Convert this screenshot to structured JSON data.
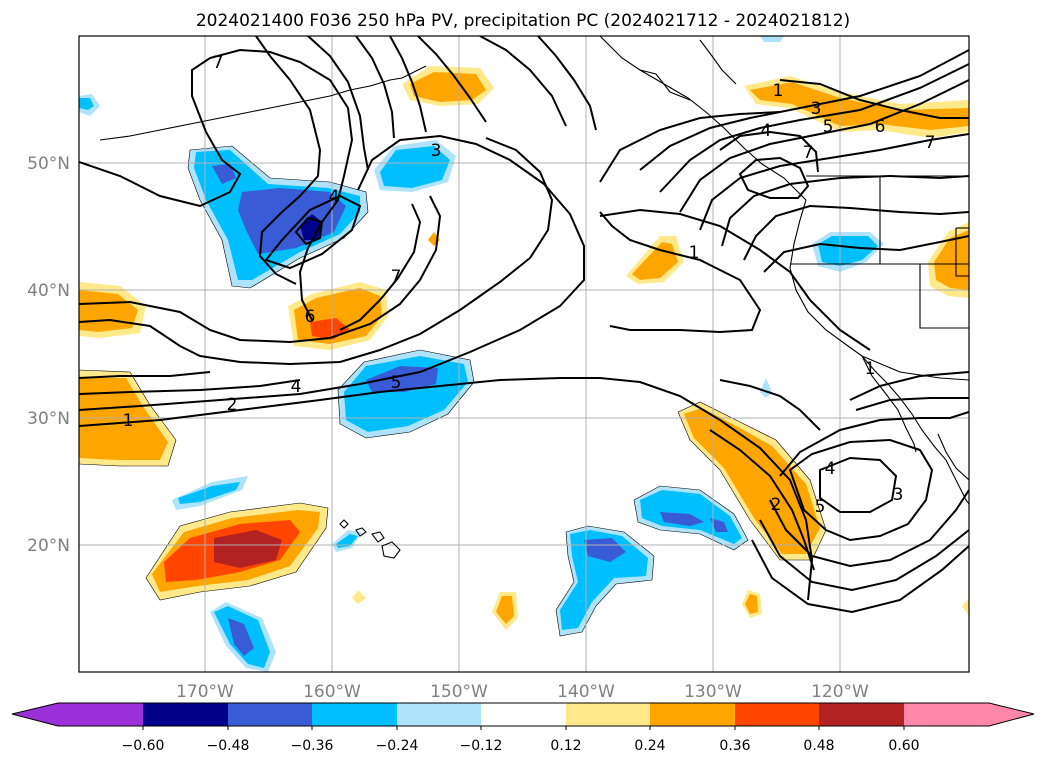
{
  "title": "2024021400 F036 250 hPa PV, precipitation PC (2024021712 - 2024021812)",
  "colors": {
    "neg_extra": "#9b30d9",
    "neg_060": "#00008b",
    "neg_048": "#3a5bd6",
    "neg_036": "#00bfff",
    "neg_024": "#aee3fb",
    "neutral": "#ffffff",
    "pos_012": "#ffe98a",
    "pos_024": "#ffa500",
    "pos_036": "#ff4500",
    "pos_048": "#b22222",
    "pos_extra": "#ff88aa"
  },
  "lat_labels": [
    "50°N",
    "40°N",
    "30°N",
    "20°N"
  ],
  "lon_labels": [
    "170°W",
    "160°W",
    "150°W",
    "140°W",
    "130°W",
    "120°W"
  ],
  "colorbar_ticks": [
    "−0.60",
    "−0.48",
    "−0.36",
    "−0.24",
    "−0.12",
    "0.12",
    "0.24",
    "0.36",
    "0.48",
    "0.60"
  ],
  "contour_labels": [
    "7",
    "4",
    "3",
    "7",
    "6",
    "5",
    "4",
    "2",
    "1",
    "1",
    "3",
    "4",
    "5",
    "6",
    "7",
    "7",
    "1",
    "1",
    "4",
    "3",
    "2",
    "5"
  ]
}
